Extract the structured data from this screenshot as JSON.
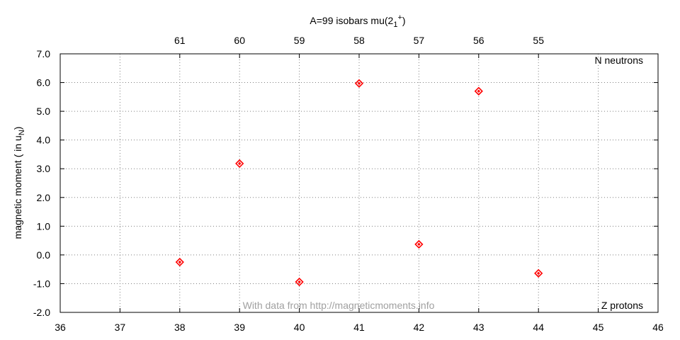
{
  "chart_data": {
    "type": "scatter",
    "title_main": "A=99 isobars mu(2",
    "title_sub": "1",
    "title_sup": "+",
    "title_close": ")",
    "ylabel_main": "magnetic moment ( in u",
    "ylabel_sub": "N",
    "ylabel_close": ")",
    "x_axis_label": "Z protons",
    "top_axis_label": "N neutrons",
    "watermark": "With data from http://magneticmoments.info",
    "xlim": [
      36,
      46
    ],
    "ylim": [
      -2.0,
      7.0
    ],
    "x_ticks": [
      "36",
      "37",
      "38",
      "39",
      "40",
      "41",
      "42",
      "43",
      "44",
      "45",
      "46"
    ],
    "y_ticks": [
      "-2.0",
      "-1.0",
      "0.0",
      "1.0",
      "2.0",
      "3.0",
      "4.0",
      "5.0",
      "6.0",
      "7.0"
    ],
    "top_ticks": [
      {
        "z": 38,
        "n": "61"
      },
      {
        "z": 39,
        "n": "60"
      },
      {
        "z": 40,
        "n": "59"
      },
      {
        "z": 41,
        "n": "58"
      },
      {
        "z": 42,
        "n": "57"
      },
      {
        "z": 43,
        "n": "56"
      },
      {
        "z": 44,
        "n": "55"
      }
    ],
    "points": [
      {
        "x": 38,
        "y": -0.25
      },
      {
        "x": 39,
        "y": 3.18
      },
      {
        "x": 40,
        "y": -0.94
      },
      {
        "x": 41,
        "y": 5.97
      },
      {
        "x": 42,
        "y": 0.37
      },
      {
        "x": 43,
        "y": 5.7
      },
      {
        "x": 44,
        "y": -0.64
      }
    ],
    "marker_color": "#ff0000",
    "grid": true
  }
}
